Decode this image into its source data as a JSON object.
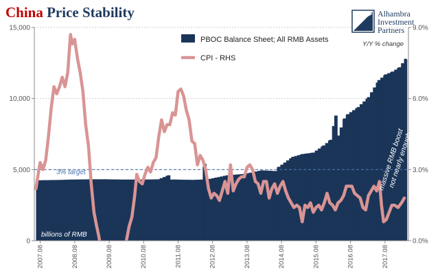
{
  "title": {
    "word1": "China",
    "word2": "Price Stability"
  },
  "logo": {
    "name": "Alhambra Investment Partners",
    "lines": [
      "Alhambra",
      "Investment",
      "Partners"
    ],
    "icon": "alhambra-logo-icon"
  },
  "colors": {
    "bars": "#1b3558",
    "cpi": "#d99494",
    "target_line": "#4a72b0",
    "title_red": "#c00000",
    "grid": "#cccccc",
    "axis_text": "#555555"
  },
  "annotations": {
    "target": "3% target",
    "units": "billions of RMB",
    "massive_line1": "massive RMB boost",
    "massive_line2": "not nearly enough",
    "right_axis_title": "Y/Y % change"
  },
  "chart_data": {
    "type": "bar+line",
    "title": "China Price Stability",
    "legend": {
      "position": "top-center",
      "entries": [
        "PBOC Balance Sheet; All RMB Assets",
        "CPI - RHS"
      ]
    },
    "left_axis": {
      "ylim": [
        0,
        15000
      ],
      "ticks": [
        "0",
        "5,000",
        "10,000",
        "15,000"
      ],
      "tick_values": [
        0,
        5000,
        10000,
        15000
      ]
    },
    "right_axis": {
      "title": "Y/Y % change",
      "ylim": [
        0,
        9
      ],
      "ticks": [
        "0.0%",
        "3.0%",
        "6.0%",
        "9.0%"
      ],
      "tick_values": [
        0,
        3,
        6,
        9
      ]
    },
    "x_ticks": [
      "2007.08",
      "2008.08",
      "2009.08",
      "2010.08",
      "2011.08",
      "2012.08",
      "2013.08",
      "2014.08",
      "2015.08",
      "2016.08",
      "2017.08"
    ],
    "x_range": [
      2006.95,
      2017.8
    ],
    "target_value": 3.0,
    "grid": true,
    "series": [
      {
        "name": "PBOC Balance Sheet; All RMB Assets",
        "kind": "bar",
        "axis": "left",
        "points": [
          [
            2007.0,
            4250
          ],
          [
            2007.5,
            4270
          ],
          [
            2008.0,
            4300
          ],
          [
            2008.5,
            4320
          ],
          [
            2009.0,
            4320
          ],
          [
            2009.5,
            4300
          ],
          [
            2010.0,
            4300
          ],
          [
            2010.5,
            4320
          ],
          [
            2010.8,
            4600
          ],
          [
            2010.85,
            4300
          ],
          [
            2011.0,
            4300
          ],
          [
            2011.5,
            4280
          ],
          [
            2011.75,
            4300
          ],
          [
            2011.85,
            5400
          ],
          [
            2011.92,
            4300
          ],
          [
            2012.0,
            4350
          ],
          [
            2012.5,
            4600
          ],
          [
            2013.0,
            4700
          ],
          [
            2013.5,
            4950
          ],
          [
            2013.9,
            4900
          ],
          [
            2014.0,
            5200
          ],
          [
            2014.4,
            5900
          ],
          [
            2014.7,
            6100
          ],
          [
            2015.0,
            6200
          ],
          [
            2015.3,
            6700
          ],
          [
            2015.5,
            7100
          ],
          [
            2015.65,
            8800
          ],
          [
            2015.72,
            7400
          ],
          [
            2015.9,
            8600
          ],
          [
            2016.0,
            8900
          ],
          [
            2016.3,
            9400
          ],
          [
            2016.6,
            10100
          ],
          [
            2016.9,
            11300
          ],
          [
            2017.1,
            11700
          ],
          [
            2017.3,
            11900
          ],
          [
            2017.5,
            12200
          ],
          [
            2017.68,
            12800
          ]
        ]
      },
      {
        "name": "CPI - RHS",
        "kind": "line",
        "axis": "right",
        "points": [
          [
            2007.0,
            2.2
          ],
          [
            2007.05,
            2.7
          ],
          [
            2007.12,
            3.3
          ],
          [
            2007.2,
            3.0
          ],
          [
            2007.28,
            3.4
          ],
          [
            2007.36,
            4.4
          ],
          [
            2007.44,
            5.6
          ],
          [
            2007.52,
            6.5
          ],
          [
            2007.6,
            6.2
          ],
          [
            2007.68,
            6.5
          ],
          [
            2007.76,
            6.9
          ],
          [
            2007.84,
            6.5
          ],
          [
            2007.92,
            7.1
          ],
          [
            2008.0,
            8.7
          ],
          [
            2008.05,
            8.3
          ],
          [
            2008.12,
            8.5
          ],
          [
            2008.2,
            7.7
          ],
          [
            2008.28,
            7.1
          ],
          [
            2008.36,
            6.3
          ],
          [
            2008.44,
            4.9
          ],
          [
            2008.52,
            4.0
          ],
          [
            2008.6,
            2.4
          ],
          [
            2008.68,
            1.2
          ],
          [
            2008.76,
            0.6
          ],
          [
            2008.82,
            0.2
          ],
          [
            2008.9,
            -0.5
          ],
          [
            2009.0,
            -1.5
          ],
          [
            2009.25,
            -1.8
          ],
          [
            2009.5,
            -1.0
          ],
          [
            2009.62,
            0.0
          ],
          [
            2009.7,
            0.6
          ],
          [
            2009.78,
            1.0
          ],
          [
            2009.86,
            1.9
          ],
          [
            2009.92,
            2.8
          ],
          [
            2010.0,
            2.5
          ],
          [
            2010.08,
            2.4
          ],
          [
            2010.16,
            2.8
          ],
          [
            2010.24,
            3.1
          ],
          [
            2010.32,
            2.9
          ],
          [
            2010.4,
            3.3
          ],
          [
            2010.48,
            3.5
          ],
          [
            2010.56,
            4.4
          ],
          [
            2010.64,
            5.1
          ],
          [
            2010.72,
            4.6
          ],
          [
            2010.8,
            4.9
          ],
          [
            2010.88,
            4.9
          ],
          [
            2010.96,
            5.4
          ],
          [
            2011.04,
            5.3
          ],
          [
            2011.12,
            6.3
          ],
          [
            2011.2,
            6.4
          ],
          [
            2011.28,
            6.1
          ],
          [
            2011.36,
            5.5
          ],
          [
            2011.44,
            5.1
          ],
          [
            2011.52,
            4.2
          ],
          [
            2011.6,
            4.1
          ],
          [
            2011.68,
            3.2
          ],
          [
            2011.76,
            3.6
          ],
          [
            2011.84,
            3.4
          ],
          [
            2011.92,
            3.0
          ],
          [
            2012.0,
            2.2
          ],
          [
            2012.08,
            1.8
          ],
          [
            2012.16,
            2.0
          ],
          [
            2012.24,
            1.9
          ],
          [
            2012.32,
            1.7
          ],
          [
            2012.4,
            2.1
          ],
          [
            2012.48,
            2.5
          ],
          [
            2012.56,
            2.0
          ],
          [
            2012.64,
            3.2
          ],
          [
            2012.72,
            2.1
          ],
          [
            2012.8,
            2.4
          ],
          [
            2012.88,
            2.6
          ],
          [
            2012.96,
            2.7
          ],
          [
            2013.04,
            2.7
          ],
          [
            2013.12,
            3.1
          ],
          [
            2013.2,
            3.2
          ],
          [
            2013.28,
            3.0
          ],
          [
            2013.36,
            2.5
          ],
          [
            2013.44,
            2.4
          ],
          [
            2013.52,
            2.0
          ],
          [
            2013.6,
            2.5
          ],
          [
            2013.68,
            2.5
          ],
          [
            2013.76,
            1.8
          ],
          [
            2013.84,
            2.2
          ],
          [
            2013.92,
            2.4
          ],
          [
            2014.0,
            2.0
          ],
          [
            2014.08,
            2.3
          ],
          [
            2014.16,
            2.5
          ],
          [
            2014.24,
            2.1
          ],
          [
            2014.32,
            1.8
          ],
          [
            2014.4,
            1.6
          ],
          [
            2014.48,
            1.4
          ],
          [
            2014.56,
            1.5
          ],
          [
            2014.64,
            1.4
          ],
          [
            2014.72,
            0.8
          ],
          [
            2014.8,
            1.5
          ],
          [
            2014.88,
            1.4
          ],
          [
            2014.96,
            1.6
          ],
          [
            2015.04,
            1.2
          ],
          [
            2015.12,
            1.4
          ],
          [
            2015.2,
            1.5
          ],
          [
            2015.28,
            1.3
          ],
          [
            2015.36,
            1.6
          ],
          [
            2015.44,
            2.0
          ],
          [
            2015.52,
            1.6
          ],
          [
            2015.6,
            1.5
          ],
          [
            2015.68,
            1.3
          ],
          [
            2015.76,
            1.6
          ],
          [
            2015.84,
            1.7
          ],
          [
            2015.92,
            1.9
          ],
          [
            2016.0,
            2.3
          ],
          [
            2016.08,
            2.3
          ],
          [
            2016.16,
            2.3
          ],
          [
            2016.24,
            2.0
          ],
          [
            2016.32,
            1.9
          ],
          [
            2016.4,
            1.8
          ],
          [
            2016.48,
            1.4
          ],
          [
            2016.56,
            1.3
          ],
          [
            2016.64,
            1.9
          ],
          [
            2016.72,
            2.1
          ],
          [
            2016.8,
            2.3
          ],
          [
            2016.88,
            2.1
          ],
          [
            2016.96,
            2.5
          ],
          [
            2017.02,
            1.5
          ],
          [
            2017.08,
            0.8
          ],
          [
            2017.16,
            0.9
          ],
          [
            2017.24,
            1.2
          ],
          [
            2017.32,
            1.5
          ],
          [
            2017.4,
            1.5
          ],
          [
            2017.5,
            1.4
          ],
          [
            2017.6,
            1.6
          ],
          [
            2017.68,
            1.8
          ]
        ]
      }
    ]
  }
}
